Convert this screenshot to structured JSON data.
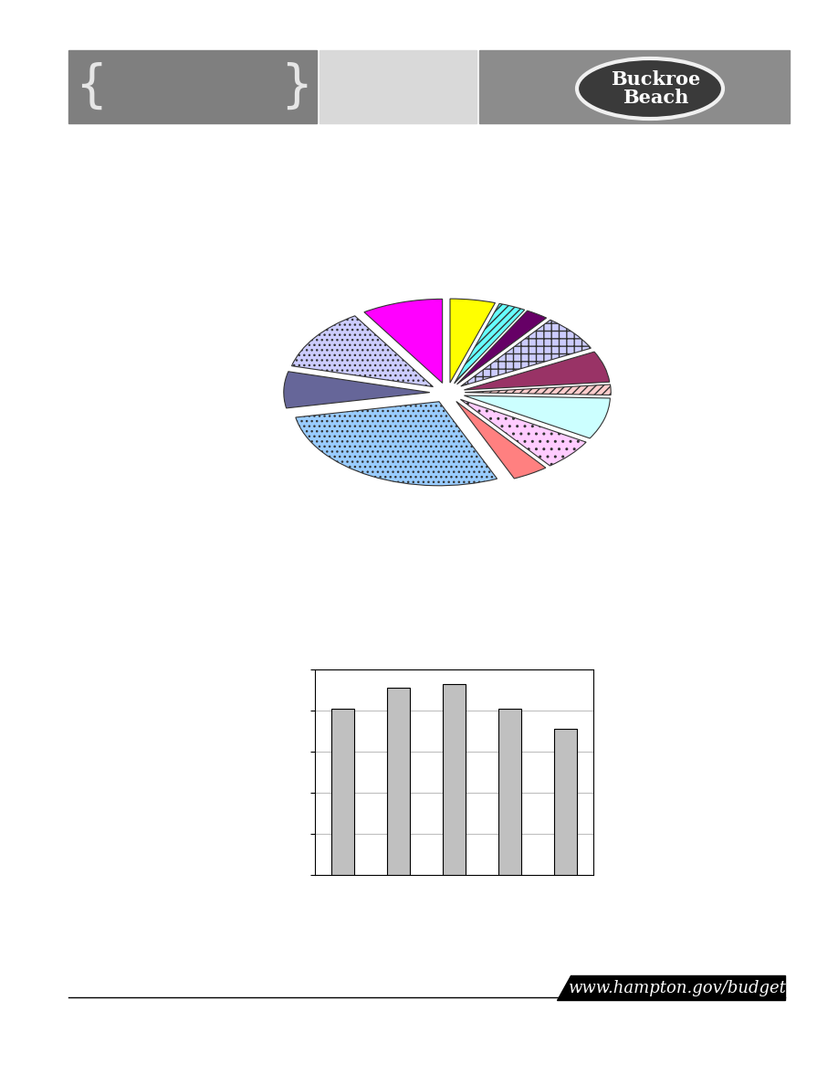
{
  "header": {
    "brace_open": "{",
    "brace_close": "}",
    "sign_text": "Buckroe\nBeach"
  },
  "chart_data": [
    {
      "type": "pie",
      "categories": [
        null,
        null,
        null,
        null,
        null,
        null,
        null,
        null,
        null,
        null,
        null,
        null,
        null
      ],
      "values": [
        5,
        3,
        2.5,
        7,
        6,
        2,
        8,
        6,
        4,
        28.5,
        7,
        12,
        9
      ],
      "colors": [
        "#ffff00",
        "#66ffff",
        "#660066",
        "#ccccff",
        "#993366",
        "#ffcccc",
        "#ccffff",
        "#ffccff",
        "#ff8080",
        "#99ccff",
        "#666699",
        "#ccccff",
        "#ff00ff"
      ]
    },
    {
      "type": "bar",
      "categories": [
        null,
        null,
        null,
        null,
        null
      ],
      "values": [
        4.05,
        4.55,
        4.65,
        4.05,
        3.55
      ],
      "color": "#c0c0c0",
      "ylim": [
        0,
        5
      ],
      "yticks": [
        0,
        1,
        2,
        3,
        4,
        5
      ],
      "grid": true,
      "tick_labels": false
    }
  ],
  "footer": {
    "url": "www.hampton.gov/budget"
  }
}
